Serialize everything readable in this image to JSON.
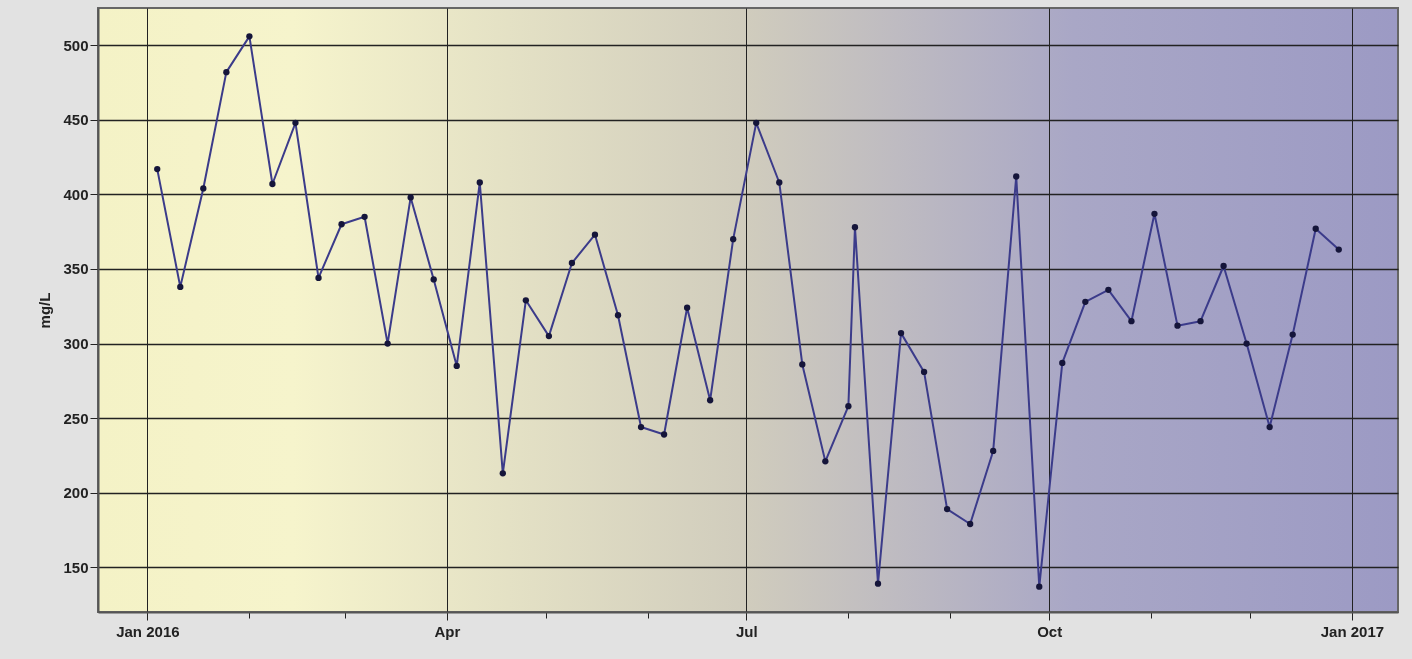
{
  "chart_data": {
    "type": "line",
    "ylabel": "mg/L",
    "x": [
      "2016-01-04",
      "2016-01-11",
      "2016-01-18",
      "2016-01-25",
      "2016-02-01",
      "2016-02-08",
      "2016-02-15",
      "2016-02-22",
      "2016-02-29",
      "2016-03-07",
      "2016-03-14",
      "2016-03-21",
      "2016-03-28",
      "2016-04-04",
      "2016-04-11",
      "2016-04-18",
      "2016-04-25",
      "2016-05-02",
      "2016-05-09",
      "2016-05-16",
      "2016-05-23",
      "2016-05-30",
      "2016-06-06",
      "2016-06-13",
      "2016-06-20",
      "2016-06-27",
      "2016-07-04",
      "2016-07-11",
      "2016-07-18",
      "2016-07-25",
      "2016-08-01",
      "2016-08-03",
      "2016-08-10",
      "2016-08-17",
      "2016-08-24",
      "2016-08-31",
      "2016-09-07",
      "2016-09-14",
      "2016-09-21",
      "2016-09-28",
      "2016-10-05",
      "2016-10-12",
      "2016-10-19",
      "2016-10-26",
      "2016-11-02",
      "2016-11-09",
      "2016-11-16",
      "2016-11-23",
      "2016-11-30",
      "2016-12-07",
      "2016-12-14",
      "2016-12-21",
      "2016-12-28"
    ],
    "series": [
      {
        "color": "#3b3b8a",
        "values": [
          417,
          338,
          404,
          482,
          506,
          407,
          448,
          344,
          380,
          385,
          300,
          398,
          343,
          285,
          408,
          213,
          329,
          305,
          354,
          373,
          319,
          244,
          239,
          324,
          262,
          370,
          448,
          408,
          286,
          221,
          258,
          378,
          139,
          307,
          281,
          189,
          179,
          228,
          412,
          137,
          287,
          328,
          336,
          315,
          387,
          312,
          315,
          352,
          300,
          244,
          306,
          377,
          363
        ]
      }
    ],
    "xlim": [
      "2015-12-17",
      "2017-01-15"
    ],
    "xticks": [
      {
        "value": "2016-01-01",
        "label": "Jan 2016"
      },
      {
        "value": "2016-02-01",
        "label": null
      },
      {
        "value": "2016-03-01",
        "label": null
      },
      {
        "value": "2016-04-01",
        "label": "Apr"
      },
      {
        "value": "2016-05-01",
        "label": null
      },
      {
        "value": "2016-06-01",
        "label": null
      },
      {
        "value": "2016-07-01",
        "label": "Jul"
      },
      {
        "value": "2016-08-01",
        "label": null
      },
      {
        "value": "2016-09-01",
        "label": null
      },
      {
        "value": "2016-10-01",
        "label": "Oct"
      },
      {
        "value": "2016-11-01",
        "label": null
      },
      {
        "value": "2016-12-01",
        "label": null
      },
      {
        "value": "2017-01-01",
        "label": "Jan 2017"
      }
    ],
    "ylim": [
      120,
      525
    ],
    "yticks": [
      150,
      200,
      250,
      300,
      350,
      400,
      450,
      500
    ],
    "grid": true,
    "marker": "circle",
    "line_style": "solid"
  }
}
